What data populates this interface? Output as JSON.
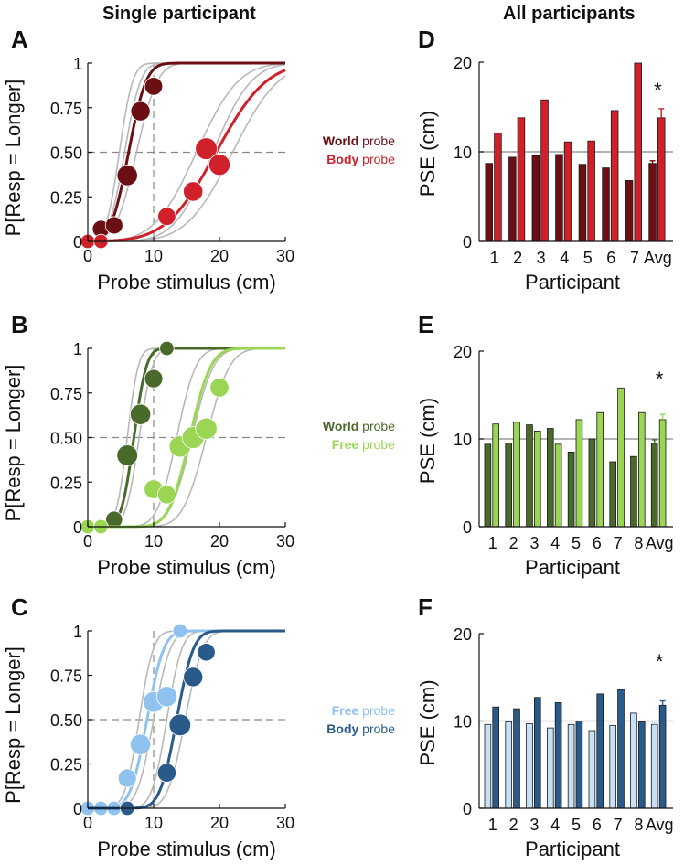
{
  "headers": {
    "left": "Single participant",
    "right": "All participants"
  },
  "legends": [
    {
      "a": {
        "bold": "World",
        "rest": " probe",
        "color": "#6b0f14"
      },
      "b": {
        "bold": "Body",
        "rest": " probe",
        "color": "#d0202a"
      }
    },
    {
      "a": {
        "bold": "World",
        "rest": " probe",
        "color": "#4a6a2c"
      },
      "b": {
        "bold": "Free",
        "rest": " probe",
        "color": "#9ad654"
      }
    },
    {
      "a": {
        "bold": "Free",
        "rest": " probe",
        "color": "#8fc2ee"
      },
      "b": {
        "bold": "Body",
        "rest": " probe",
        "color": "#2a5a8a"
      }
    }
  ],
  "chart_data": [
    {
      "panel": "A",
      "type": "scatter",
      "xlabel": "Probe stimulus (cm)",
      "ylabel": "P[Resp = Longer]",
      "xlim": [
        0,
        30
      ],
      "ylim": [
        0,
        1
      ],
      "xticks": [
        "0",
        "10",
        "20",
        "30"
      ],
      "yticks": [
        "0",
        "0.25",
        "0.50",
        "0.75",
        "1"
      ],
      "series": [
        {
          "name": "World probe",
          "color": "#6b0f14",
          "fit": {
            "mu": 6.2,
            "sigma": 2.1
          },
          "points": [
            [
              2,
              0.07
            ],
            [
              4,
              0.09
            ],
            [
              6,
              0.37
            ],
            [
              8,
              0.73
            ],
            [
              10,
              0.87
            ]
          ]
        },
        {
          "name": "Body probe",
          "color": "#d0202a",
          "fit": {
            "mu": 19.5,
            "sigma": 6.0
          },
          "points": [
            [
              0,
              0
            ],
            [
              2,
              0
            ],
            [
              12,
              0.14
            ],
            [
              16,
              0.28
            ],
            [
              18,
              0.52
            ],
            [
              20,
              0.43
            ]
          ]
        }
      ],
      "grey_fits": [
        [
          4.8,
          1.6
        ],
        [
          5.6,
          1.9
        ],
        [
          7.4,
          2.5
        ],
        [
          16.5,
          5.0
        ],
        [
          19.0,
          4.6
        ],
        [
          22.0,
          5.5
        ]
      ]
    },
    {
      "panel": "B",
      "type": "scatter",
      "xlabel": "Probe stimulus (cm)",
      "ylabel": "P[Resp = Longer]",
      "xlim": [
        0,
        30
      ],
      "ylim": [
        0,
        1
      ],
      "xticks": [
        "0",
        "10",
        "20",
        "30"
      ],
      "yticks": [
        "0",
        "0.25",
        "0.50",
        "0.75",
        "1"
      ],
      "series": [
        {
          "name": "World probe",
          "color": "#4a6a2c",
          "fit": {
            "mu": 7.0,
            "sigma": 1.5
          },
          "points": [
            [
              4,
              0.04
            ],
            [
              6,
              0.4
            ],
            [
              8,
              0.63
            ],
            [
              10,
              0.83
            ],
            [
              12,
              1.0
            ]
          ]
        },
        {
          "name": "Free probe",
          "color": "#9ad654",
          "fit": {
            "mu": 15.5,
            "sigma": 2.5
          },
          "points": [
            [
              0,
              0
            ],
            [
              2,
              0
            ],
            [
              10,
              0.21
            ],
            [
              12,
              0.18
            ],
            [
              14,
              0.45
            ],
            [
              16,
              0.5
            ],
            [
              18,
              0.55
            ],
            [
              20,
              0.78
            ]
          ]
        }
      ],
      "grey_fits": [
        [
          6.0,
          1.3
        ],
        [
          7.8,
          1.6
        ],
        [
          13.5,
          2.3
        ],
        [
          15.8,
          2.6
        ],
        [
          18.0,
          2.8
        ]
      ]
    },
    {
      "panel": "C",
      "type": "scatter",
      "xlabel": "Probe stimulus (cm)",
      "ylabel": "P[Resp = Longer]",
      "xlim": [
        0,
        30
      ],
      "ylim": [
        0,
        1
      ],
      "xticks": [
        "0",
        "10",
        "20",
        "30"
      ],
      "yticks": [
        "0",
        "0.25",
        "0.50",
        "0.75",
        "1"
      ],
      "series": [
        {
          "name": "Free probe",
          "color": "#8fc2ee",
          "fit": {
            "mu": 9.0,
            "sigma": 2.0
          },
          "points": [
            [
              0,
              0
            ],
            [
              2,
              0
            ],
            [
              4,
              0
            ],
            [
              6,
              0.17
            ],
            [
              8,
              0.36
            ],
            [
              10,
              0.6
            ],
            [
              12,
              0.63
            ],
            [
              14,
              1.0
            ]
          ]
        },
        {
          "name": "Body probe",
          "color": "#2a5a8a",
          "fit": {
            "mu": 13.5,
            "sigma": 2.0
          },
          "points": [
            [
              6,
              0
            ],
            [
              12,
              0.2
            ],
            [
              14,
              0.47
            ],
            [
              16,
              0.74
            ],
            [
              18,
              0.88
            ]
          ]
        }
      ],
      "grey_fits": [
        [
          7.8,
          1.7
        ],
        [
          10.0,
          2.0
        ],
        [
          12.0,
          1.8
        ],
        [
          14.8,
          2.1
        ]
      ]
    },
    {
      "panel": "D",
      "type": "bar",
      "xlabel": "Participant",
      "ylabel": "PSE (cm)",
      "ylim": [
        0,
        20
      ],
      "yticks": [
        "0",
        "10",
        "20"
      ],
      "categories": [
        "1",
        "2",
        "3",
        "4",
        "5",
        "6",
        "7",
        "Avg"
      ],
      "series": [
        {
          "name": "World probe",
          "color": "#6b0f14",
          "values": [
            8.7,
            9.4,
            9.6,
            9.7,
            8.6,
            8.2,
            6.8,
            8.7
          ]
        },
        {
          "name": "Body probe",
          "color": "#d0202a",
          "values": [
            12.1,
            13.8,
            15.8,
            11.1,
            11.2,
            14.6,
            19.9,
            13.8
          ]
        }
      ],
      "errors": {
        "World probe": 0.3,
        "Body probe": 1.0
      },
      "reference": 10,
      "marker": "*"
    },
    {
      "panel": "E",
      "type": "bar",
      "xlabel": "Participant",
      "ylabel": "PSE (cm)",
      "ylim": [
        0,
        20
      ],
      "yticks": [
        "0",
        "10",
        "20"
      ],
      "categories": [
        "1",
        "2",
        "3",
        "4",
        "5",
        "6",
        "7",
        "8",
        "Avg"
      ],
      "series": [
        {
          "name": "World probe",
          "color": "#4a6a2c",
          "values": [
            9.4,
            9.5,
            11.6,
            11.2,
            8.5,
            10.0,
            7.4,
            8.0,
            9.5
          ]
        },
        {
          "name": "Free probe",
          "color": "#9ad654",
          "values": [
            11.7,
            11.9,
            10.9,
            9.4,
            12.2,
            13.0,
            15.8,
            13.0,
            12.2
          ]
        }
      ],
      "errors": {
        "World probe": 0.4,
        "Free probe": 0.6
      },
      "reference": 10,
      "marker": "*"
    },
    {
      "panel": "F",
      "type": "bar",
      "xlabel": "Participant",
      "ylabel": "PSE (cm)",
      "ylim": [
        0,
        20
      ],
      "yticks": [
        "0",
        "10",
        "20"
      ],
      "categories": [
        "1",
        "2",
        "3",
        "4",
        "5",
        "6",
        "7",
        "8",
        "Avg"
      ],
      "series": [
        {
          "name": "Free probe",
          "color": "#c6e0f5",
          "values": [
            9.6,
            9.9,
            9.7,
            9.2,
            9.6,
            8.9,
            9.5,
            10.9,
            9.6
          ]
        },
        {
          "name": "Body probe",
          "color": "#2a5a8a",
          "values": [
            11.6,
            11.4,
            12.7,
            12.1,
            10.0,
            13.1,
            13.6,
            9.9,
            11.8
          ]
        }
      ],
      "errors": {
        "Free probe": 0.2,
        "Body probe": 0.5
      },
      "reference": 10,
      "marker": "*"
    }
  ]
}
